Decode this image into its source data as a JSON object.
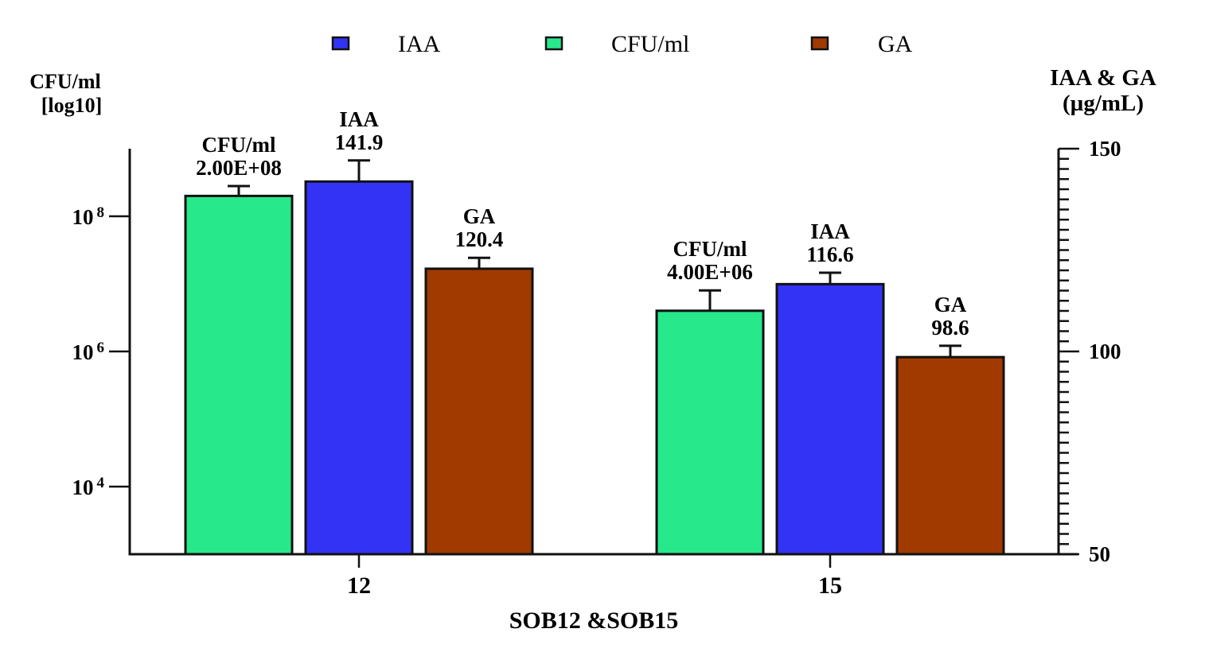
{
  "chart_data": {
    "type": "bar",
    "title": "",
    "xlabel": "SOB12 &SOB15",
    "categories": [
      "12",
      "15"
    ],
    "left_axis": {
      "label_line1": "CFU/ml",
      "label_line2": "[log10]",
      "scale": "log10",
      "range": [
        1000,
        1000000000
      ],
      "ticks": [
        {
          "value": 100000000,
          "base": "10",
          "exp": "8"
        },
        {
          "value": 1000000,
          "base": "10",
          "exp": "6"
        },
        {
          "value": 10000,
          "base": "10",
          "exp": "4"
        }
      ]
    },
    "right_axis": {
      "label_line1": "IAA & GA",
      "label_line2": "(µg/mL)",
      "scale": "linear",
      "range": [
        50,
        150
      ],
      "ticks": [
        "150",
        "100",
        "50"
      ],
      "minor_step": 5
    },
    "legend": {
      "position": "top",
      "items": [
        {
          "name": "IAA",
          "color": "#3333f5"
        },
        {
          "name": "CFU/ml",
          "color": "#27e88b"
        },
        {
          "name": "GA",
          "color": "#a03a00"
        }
      ]
    },
    "series": [
      {
        "name": "CFU/ml",
        "axis": "left",
        "color": "#27e88b",
        "values": [
          200000000,
          4000000
        ],
        "error_upper": [
          280000000,
          8000000
        ],
        "labels": [
          {
            "name": "CFU/ml",
            "value": "2.00E+08"
          },
          {
            "name": "CFU/ml",
            "value": "4.00E+06"
          }
        ]
      },
      {
        "name": "IAA",
        "axis": "right",
        "color": "#3333f5",
        "values": [
          141.9,
          116.6
        ],
        "error_upper": [
          147.1,
          119.4
        ],
        "labels": [
          {
            "name": "IAA",
            "value": "141.9"
          },
          {
            "name": "IAA",
            "value": "116.6"
          }
        ]
      },
      {
        "name": "GA",
        "axis": "right",
        "color": "#a03a00",
        "values": [
          120.4,
          98.6
        ],
        "error_upper": [
          123.1,
          101.4
        ],
        "labels": [
          {
            "name": "GA",
            "value": "120.4"
          },
          {
            "name": "GA",
            "value": "98.6"
          }
        ]
      }
    ]
  }
}
